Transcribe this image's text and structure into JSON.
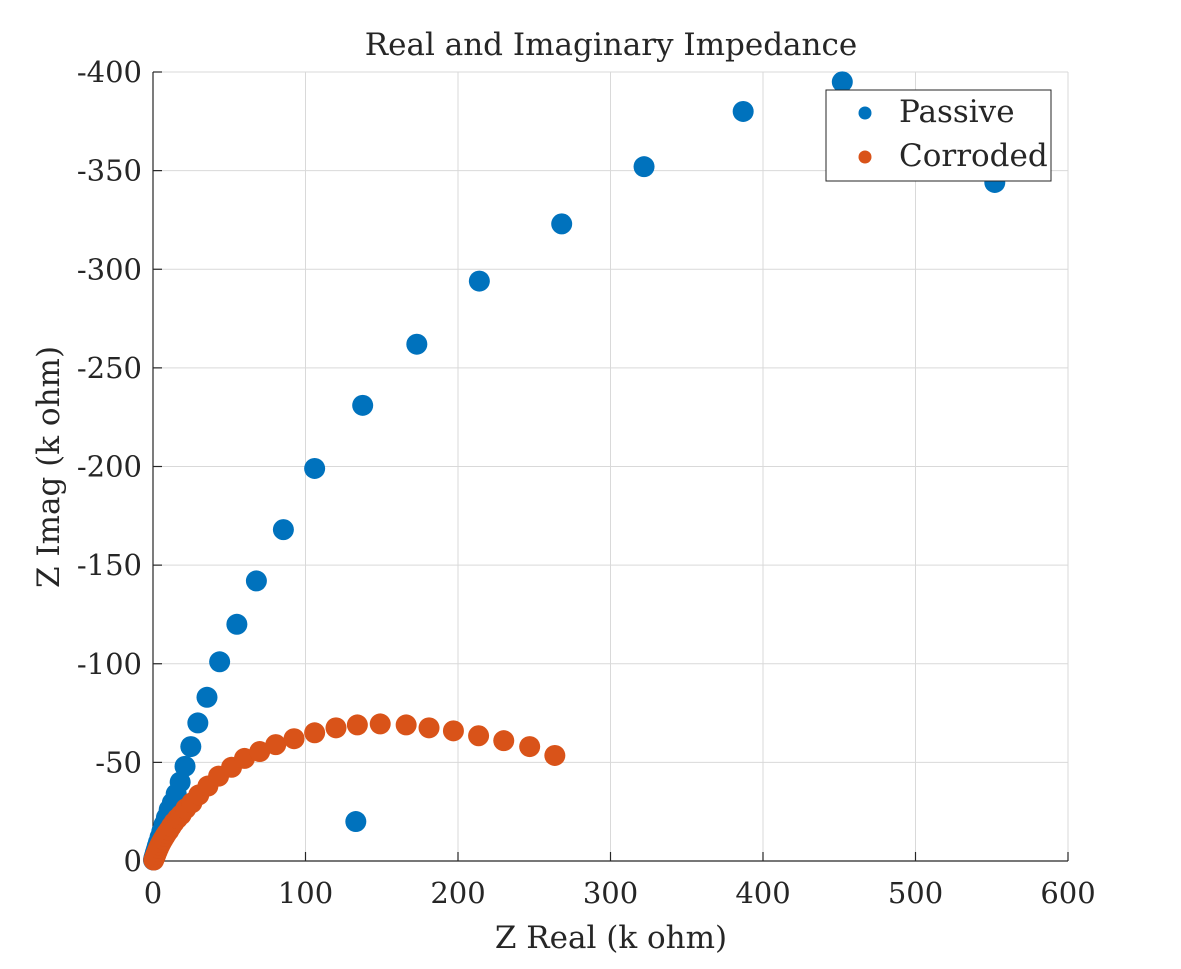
{
  "chart_data": {
    "type": "scatter",
    "title": "Real and Imaginary Impedance",
    "xlabel": "Z Real (k ohm)",
    "ylabel": "Z Imag (k ohm)",
    "xlim": [
      0,
      600
    ],
    "ylim": [
      0,
      -400
    ],
    "y_axis_reversed": true,
    "grid": true,
    "legend_position": "top-right",
    "x_ticks": [
      0,
      100,
      200,
      300,
      400,
      500,
      600
    ],
    "y_ticks": [
      0,
      -50,
      -100,
      -150,
      -200,
      -250,
      -300,
      -350,
      -400
    ],
    "x_tick_labels": [
      "0",
      "100",
      "200",
      "300",
      "400",
      "500",
      "600"
    ],
    "y_tick_labels": [
      "0",
      "-50",
      "-100",
      "-150",
      "-200",
      "-250",
      "-300",
      "-350",
      "-400"
    ],
    "series": [
      {
        "name": "Passive",
        "color": "#0072BD",
        "x": [
          0.3,
          0.6,
          1.0,
          1.5,
          2.1,
          2.8,
          3.6,
          4.6,
          5.8,
          7.2,
          8.8,
          10.6,
          12.7,
          15.2,
          17.8,
          21.0,
          24.8,
          29.4,
          35.4,
          43.7,
          55.0,
          67.8,
          85.5,
          106.0,
          137.5,
          173.0,
          214.0,
          268.0,
          322.0,
          387.0,
          452.0,
          552.0,
          133.0
        ],
        "y": [
          -0.5,
          -1.5,
          -2.5,
          -4.0,
          -5.5,
          -7.5,
          -9.5,
          -12.0,
          -15.0,
          -18.5,
          -22.0,
          -26.0,
          -29.5,
          -34.0,
          -40.0,
          -48.0,
          -58.0,
          -70.0,
          -83.0,
          -101.0,
          -120.0,
          -142.0,
          -168.0,
          -199.0,
          -231.0,
          -262.0,
          -294.0,
          -323.0,
          -352.0,
          -380.0,
          -395.0,
          -344.0,
          -20.0
        ]
      },
      {
        "name": "Corroded",
        "color": "#D95319",
        "x": [
          0.5,
          1.0,
          1.5,
          2.0,
          2.8,
          3.6,
          4.5,
          5.5,
          6.6,
          7.8,
          9.0,
          10.4,
          12.0,
          13.8,
          16.0,
          18.5,
          21.5,
          25.5,
          30.0,
          36.0,
          43.0,
          51.5,
          60.0,
          70.0,
          80.5,
          92.5,
          106.0,
          120.0,
          134.0,
          149.0,
          166.0,
          181.0,
          197.0,
          213.5,
          230.0,
          247.0,
          263.5
        ],
        "y": [
          -0.5,
          -1.5,
          -2.5,
          -3.5,
          -5.0,
          -6.5,
          -8.0,
          -9.5,
          -11.0,
          -12.5,
          -14.0,
          -15.5,
          -17.5,
          -19.5,
          -21.5,
          -23.5,
          -26.5,
          -29.5,
          -33.5,
          -38.0,
          -43.0,
          -47.5,
          -52.0,
          -55.5,
          -59.0,
          -62.0,
          -65.0,
          -67.5,
          -69.0,
          -69.5,
          -69.0,
          -67.5,
          -66.0,
          -63.5,
          -61.0,
          -58.0,
          -53.5
        ]
      }
    ]
  }
}
